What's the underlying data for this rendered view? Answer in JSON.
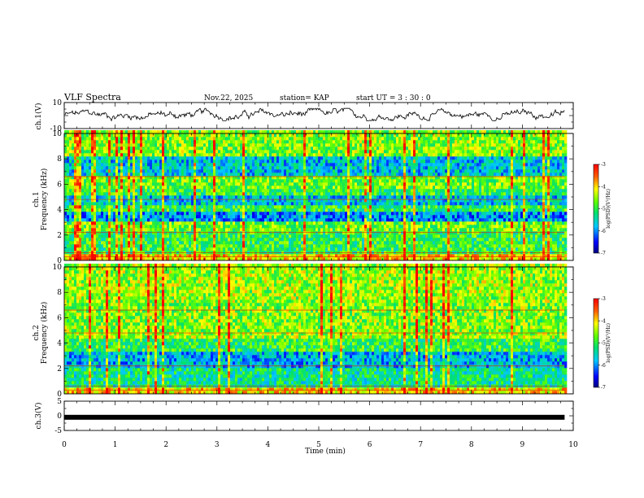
{
  "header": {
    "title": "VLF Spectra",
    "date": "Nov.22, 2025",
    "station": "station= KAP",
    "start": "start  UT =   3  : 30 : 0"
  },
  "chart_data": [
    {
      "id": "ch1-waveform",
      "type": "line",
      "ylabel": "ch.1(V)",
      "ylim": [
        -10,
        10
      ],
      "y_ticks": [
        "10",
        "-10"
      ],
      "x_range_min": [
        0,
        9.83
      ],
      "note": "noisy waveform fluctuating roughly between -3 and +5 V"
    },
    {
      "id": "ch1-spectrogram",
      "type": "heatmap",
      "ylabel": "Frequency (kHz)",
      "channel_label": "ch.1",
      "ylim": [
        0,
        10
      ],
      "y_ticks": [
        "0",
        "2",
        "4",
        "6",
        "8",
        "10"
      ],
      "colorbar": {
        "label": "log(PSD)(V²/Hz)",
        "range": [
          -7,
          -3
        ],
        "ticks": [
          "-3",
          "-4",
          "-5",
          "-6",
          "-7"
        ]
      },
      "bands_khz": [
        {
          "from": 0.0,
          "to": 0.5,
          "level": -4.0
        },
        {
          "from": 0.5,
          "to": 2.1,
          "level": -5.0
        },
        {
          "from": 2.1,
          "to": 2.9,
          "level": -4.7
        },
        {
          "from": 2.9,
          "to": 3.7,
          "level": -6.0
        },
        {
          "from": 3.7,
          "to": 4.2,
          "level": -5.0
        },
        {
          "from": 4.2,
          "to": 4.9,
          "level": -5.7
        },
        {
          "from": 4.9,
          "to": 5.6,
          "level": -5.0
        },
        {
          "from": 5.6,
          "to": 6.6,
          "level": -4.7
        },
        {
          "from": 6.6,
          "to": 8.0,
          "level": -5.7
        },
        {
          "from": 8.0,
          "to": 10.0,
          "level": -4.6
        }
      ]
    },
    {
      "id": "ch2-spectrogram",
      "type": "heatmap",
      "ylabel": "Frequency (kHz)",
      "channel_label": "ch.2",
      "ylim": [
        0,
        10
      ],
      "y_ticks": [
        "0",
        "2",
        "4",
        "6",
        "8",
        "10"
      ],
      "colorbar": {
        "label": "log(PSD)(V²/Hz)",
        "range": [
          -7,
          -3
        ],
        "ticks": [
          "-3",
          "-4",
          "-5",
          "-6",
          "-7"
        ]
      },
      "bands_khz": [
        {
          "from": 0.0,
          "to": 0.5,
          "level": -4.0
        },
        {
          "from": 0.5,
          "to": 2.0,
          "level": -5.3
        },
        {
          "from": 2.0,
          "to": 3.2,
          "level": -5.8
        },
        {
          "from": 3.2,
          "to": 4.2,
          "level": -5.0
        },
        {
          "from": 4.2,
          "to": 4.8,
          "level": -4.5
        },
        {
          "from": 4.8,
          "to": 7.0,
          "level": -4.6
        },
        {
          "from": 7.0,
          "to": 10.0,
          "level": -4.5
        }
      ]
    },
    {
      "id": "ch3-waveform",
      "type": "line",
      "ylabel": "ch.3(V)",
      "ylim": [
        -5,
        5
      ],
      "y_ticks": [
        "5",
        "0",
        "-5"
      ],
      "x_range_min": [
        0,
        9.83
      ],
      "level_v": -0.5,
      "note": "thick flat band near 0 V"
    }
  ],
  "xaxis": {
    "label": "Time (min)",
    "range": [
      0,
      10
    ],
    "ticks": [
      "0",
      "1",
      "2",
      "3",
      "4",
      "5",
      "6",
      "7",
      "8",
      "9",
      "10"
    ]
  },
  "colors": {
    "axis": "#000000",
    "background": "#ffffff"
  }
}
